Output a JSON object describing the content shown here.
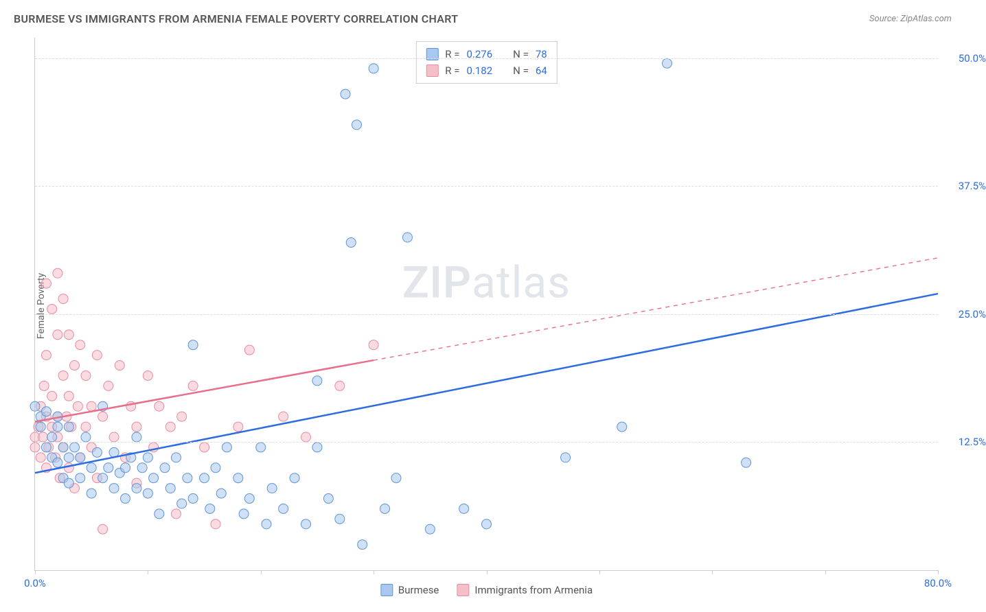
{
  "title": "BURMESE VS IMMIGRANTS FROM ARMENIA FEMALE POVERTY CORRELATION CHART",
  "source": "Source: ZipAtlas.com",
  "watermark_bold": "ZIP",
  "watermark_light": "atlas",
  "y_axis_label": "Female Poverty",
  "chart": {
    "type": "scatter",
    "xlim": [
      0,
      80
    ],
    "ylim": [
      0,
      52
    ],
    "x_ticks": [
      0,
      10,
      20,
      30,
      40,
      50,
      60,
      70,
      80
    ],
    "x_tick_labels": {
      "0": "0.0%",
      "80": "80.0%"
    },
    "y_ticks": [
      12.5,
      25.0,
      37.5,
      50.0
    ],
    "y_tick_labels": [
      "12.5%",
      "25.0%",
      "37.5%",
      "50.0%"
    ],
    "x_label_color": "#2d6cdf",
    "y_label_color": "#2d6cdf",
    "grid_color": "#dddddd",
    "background_color": "#ffffff",
    "marker_radius": 7,
    "marker_opacity": 0.55,
    "trend_line_width": 2.5,
    "series": [
      {
        "name": "Burmese",
        "color_fill": "#a9c8ef",
        "color_stroke": "#5e94d6",
        "line_color": "#2d6cdf",
        "r": "0.276",
        "n": "78",
        "trend": {
          "x1": 0,
          "y1": 9.5,
          "x2": 80,
          "y2": 27.0,
          "solid_until_x": 80
        },
        "points": [
          [
            0,
            16
          ],
          [
            0.5,
            15
          ],
          [
            0.5,
            14
          ],
          [
            1,
            15.5
          ],
          [
            1,
            12
          ],
          [
            1.5,
            13
          ],
          [
            1.5,
            11
          ],
          [
            2,
            14
          ],
          [
            2,
            10.5
          ],
          [
            2,
            15
          ],
          [
            2.5,
            12
          ],
          [
            2.5,
            9
          ],
          [
            3,
            14
          ],
          [
            3,
            11
          ],
          [
            3,
            8.5
          ],
          [
            3.5,
            12
          ],
          [
            4,
            9
          ],
          [
            4,
            11
          ],
          [
            4.5,
            13
          ],
          [
            5,
            10
          ],
          [
            5,
            7.5
          ],
          [
            5.5,
            11.5
          ],
          [
            6,
            9
          ],
          [
            6,
            16
          ],
          [
            6.5,
            10
          ],
          [
            7,
            8
          ],
          [
            7,
            11.5
          ],
          [
            7.5,
            9.5
          ],
          [
            8,
            10
          ],
          [
            8,
            7
          ],
          [
            8.5,
            11
          ],
          [
            9,
            8
          ],
          [
            9,
            13
          ],
          [
            9.5,
            10
          ],
          [
            10,
            7.5
          ],
          [
            10,
            11
          ],
          [
            10.5,
            9
          ],
          [
            11,
            5.5
          ],
          [
            11.5,
            10
          ],
          [
            12,
            8
          ],
          [
            12.5,
            11
          ],
          [
            13,
            6.5
          ],
          [
            13.5,
            9
          ],
          [
            14,
            22
          ],
          [
            14,
            7
          ],
          [
            15,
            9
          ],
          [
            15.5,
            6
          ],
          [
            16,
            10
          ],
          [
            16.5,
            7.5
          ],
          [
            17,
            12
          ],
          [
            18,
            9
          ],
          [
            18.5,
            5.5
          ],
          [
            19,
            7
          ],
          [
            20,
            12
          ],
          [
            20.5,
            4.5
          ],
          [
            21,
            8
          ],
          [
            22,
            6
          ],
          [
            23,
            9
          ],
          [
            24,
            4.5
          ],
          [
            25,
            18.5
          ],
          [
            25,
            12
          ],
          [
            26,
            7
          ],
          [
            27,
            5
          ],
          [
            27.5,
            46.5
          ],
          [
            28,
            32
          ],
          [
            28.5,
            43.5
          ],
          [
            29,
            2.5
          ],
          [
            30,
            49
          ],
          [
            31,
            6
          ],
          [
            32,
            9
          ],
          [
            33,
            32.5
          ],
          [
            35,
            4
          ],
          [
            38,
            6
          ],
          [
            40,
            4.5
          ],
          [
            47,
            11
          ],
          [
            52,
            14
          ],
          [
            56,
            49.5
          ],
          [
            63,
            10.5
          ]
        ]
      },
      {
        "name": "Immigrants from Armenia",
        "color_fill": "#f4bfc8",
        "color_stroke": "#e98ba0",
        "line_color": "#e76f8b",
        "r": "0.182",
        "n": "64",
        "trend": {
          "x1": 0,
          "y1": 14.5,
          "x2": 80,
          "y2": 30.5,
          "solid_until_x": 30
        },
        "points": [
          [
            0,
            13
          ],
          [
            0,
            12
          ],
          [
            0.3,
            14
          ],
          [
            0.5,
            16
          ],
          [
            0.5,
            11
          ],
          [
            0.7,
            13
          ],
          [
            0.8,
            18
          ],
          [
            1,
            15
          ],
          [
            1,
            10
          ],
          [
            1,
            21
          ],
          [
            1,
            28
          ],
          [
            1.2,
            12
          ],
          [
            1.5,
            17
          ],
          [
            1.5,
            25.5
          ],
          [
            1.5,
            14
          ],
          [
            1.8,
            11
          ],
          [
            2,
            29
          ],
          [
            2,
            15
          ],
          [
            2,
            23
          ],
          [
            2,
            13
          ],
          [
            2.2,
            9
          ],
          [
            2.5,
            26.5
          ],
          [
            2.5,
            19
          ],
          [
            2.5,
            12
          ],
          [
            2.8,
            15
          ],
          [
            3,
            23
          ],
          [
            3,
            17
          ],
          [
            3,
            10
          ],
          [
            3.2,
            14
          ],
          [
            3.5,
            20
          ],
          [
            3.5,
            8
          ],
          [
            3.8,
            16
          ],
          [
            4,
            11
          ],
          [
            4,
            22
          ],
          [
            4.5,
            14
          ],
          [
            4.5,
            19
          ],
          [
            5,
            12
          ],
          [
            5,
            16
          ],
          [
            5.5,
            21
          ],
          [
            5.5,
            9
          ],
          [
            6,
            15
          ],
          [
            6,
            4
          ],
          [
            6.5,
            18
          ],
          [
            7,
            13
          ],
          [
            7.5,
            20
          ],
          [
            8,
            11
          ],
          [
            8.5,
            16
          ],
          [
            9,
            14
          ],
          [
            9,
            8.5
          ],
          [
            10,
            19
          ],
          [
            10.5,
            12
          ],
          [
            11,
            16
          ],
          [
            12,
            14
          ],
          [
            12.5,
            5.5
          ],
          [
            13,
            15
          ],
          [
            14,
            18
          ],
          [
            15,
            12
          ],
          [
            16,
            4.5
          ],
          [
            18,
            14
          ],
          [
            19,
            21.5
          ],
          [
            22,
            15
          ],
          [
            24,
            13
          ],
          [
            27,
            18
          ],
          [
            30,
            22
          ]
        ]
      }
    ]
  },
  "stats_box": {
    "r_label": "R =",
    "n_label": "N ="
  },
  "legend": {
    "series1": "Burmese",
    "series2": "Immigrants from Armenia"
  }
}
